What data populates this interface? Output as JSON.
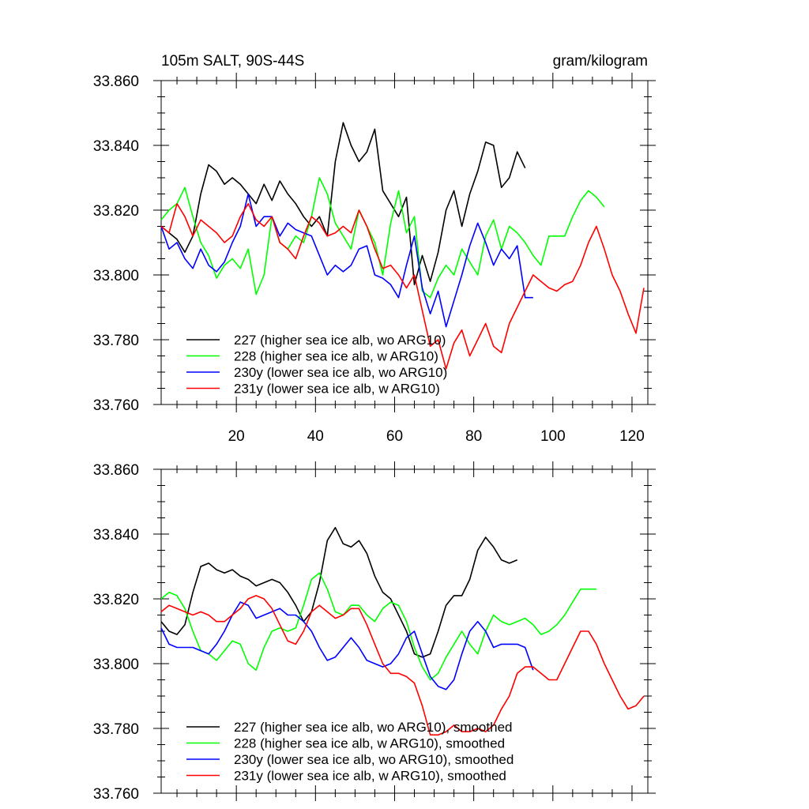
{
  "chart_data": [
    {
      "type": "line",
      "title": "105m SALT, 90S-44S",
      "units": "gram/kilogram",
      "xlim": [
        1,
        124
      ],
      "ylim": [
        33.76,
        33.86
      ],
      "x_ticks": [
        "20",
        "40",
        "60",
        "80",
        "100",
        "120"
      ],
      "y_ticks": [
        "33.760",
        "33.780",
        "33.800",
        "33.820",
        "33.840",
        "33.860"
      ],
      "series": [
        {
          "name": "227 (higher sea ice alb, wo ARG10)",
          "color": "#000000",
          "x": [
            1,
            3,
            5,
            7,
            9,
            11,
            13,
            15,
            17,
            19,
            21,
            23,
            25,
            27,
            29,
            31,
            33,
            35,
            37,
            39,
            41,
            43,
            45,
            47,
            49,
            51,
            53,
            55,
            57,
            59,
            61,
            63,
            65,
            67,
            69,
            71,
            73,
            75,
            77,
            79,
            81,
            83,
            85,
            87,
            89,
            91,
            93
          ],
          "values": [
            33.815,
            33.813,
            33.811,
            33.807,
            33.812,
            33.825,
            33.834,
            33.832,
            33.828,
            33.83,
            33.828,
            33.825,
            33.822,
            33.828,
            33.823,
            33.829,
            33.825,
            33.822,
            33.818,
            33.815,
            33.818,
            33.812,
            33.835,
            33.847,
            33.84,
            33.835,
            33.838,
            33.845,
            33.826,
            33.822,
            33.818,
            33.824,
            33.797,
            33.806,
            33.798,
            33.807,
            33.82,
            33.826,
            33.815,
            33.825,
            33.832,
            33.841,
            33.84,
            33.827,
            33.83,
            33.838,
            33.833
          ]
        },
        {
          "name": "228 (higher sea ice alb, w ARG10)",
          "color": "#00ff00",
          "x": [
            1,
            3,
            5,
            7,
            9,
            11,
            13,
            15,
            17,
            19,
            21,
            23,
            25,
            27,
            29,
            31,
            33,
            35,
            37,
            39,
            41,
            43,
            45,
            47,
            49,
            51,
            53,
            55,
            57,
            59,
            61,
            63,
            65,
            67,
            69,
            71,
            73,
            75,
            77,
            79,
            81,
            83,
            85,
            87,
            89,
            91,
            93,
            95,
            97,
            99,
            101,
            103,
            105,
            107,
            109,
            111,
            113
          ],
          "values": [
            33.817,
            33.82,
            33.822,
            33.827,
            33.818,
            33.81,
            33.806,
            33.799,
            33.803,
            33.805,
            33.802,
            33.808,
            33.794,
            33.8,
            33.818,
            33.81,
            33.808,
            33.812,
            33.81,
            33.818,
            33.83,
            33.825,
            33.816,
            33.812,
            33.808,
            33.82,
            33.815,
            33.81,
            33.8,
            33.816,
            33.826,
            33.813,
            33.818,
            33.795,
            33.793,
            33.799,
            33.803,
            33.8,
            33.808,
            33.804,
            33.8,
            33.812,
            33.817,
            33.808,
            33.815,
            33.813,
            33.81,
            33.806,
            33.803,
            33.812,
            33.812,
            33.812,
            33.818,
            33.823,
            33.826,
            33.824,
            33.821
          ]
        },
        {
          "name": "230y (lower sea ice alb, wo ARG10)",
          "color": "#0000ff",
          "x": [
            1,
            3,
            5,
            7,
            9,
            11,
            13,
            15,
            17,
            19,
            21,
            23,
            25,
            27,
            29,
            31,
            33,
            35,
            37,
            39,
            41,
            43,
            45,
            47,
            49,
            51,
            53,
            55,
            57,
            59,
            61,
            63,
            65,
            67,
            69,
            71,
            73,
            75,
            77,
            79,
            81,
            83,
            85,
            87,
            89,
            91,
            93,
            95
          ],
          "values": [
            33.815,
            33.808,
            33.81,
            33.805,
            33.802,
            33.808,
            33.803,
            33.801,
            33.804,
            33.81,
            33.815,
            33.825,
            33.815,
            33.818,
            33.818,
            33.812,
            33.816,
            33.814,
            33.813,
            33.812,
            33.806,
            33.8,
            33.803,
            33.801,
            33.803,
            33.808,
            33.809,
            33.8,
            33.799,
            33.797,
            33.793,
            33.803,
            33.812,
            33.796,
            33.788,
            33.795,
            33.784,
            33.792,
            33.8,
            33.809,
            33.816,
            33.81,
            33.803,
            33.808,
            33.805,
            33.809,
            33.793,
            33.793
          ]
        },
        {
          "name": "231y (lower sea ice alb, w ARG10)",
          "color": "#ff0000",
          "x": [
            1,
            3,
            5,
            7,
            9,
            11,
            13,
            15,
            17,
            19,
            21,
            23,
            25,
            27,
            29,
            31,
            33,
            35,
            37,
            39,
            41,
            43,
            45,
            47,
            49,
            51,
            53,
            55,
            57,
            59,
            61,
            63,
            65,
            67,
            69,
            71,
            73,
            75,
            77,
            79,
            81,
            83,
            85,
            87,
            89,
            91,
            93,
            95,
            97,
            99,
            101,
            103,
            105,
            107,
            109,
            111,
            113,
            115,
            117,
            119,
            121,
            123
          ],
          "values": [
            33.815,
            33.813,
            33.822,
            33.818,
            33.812,
            33.817,
            33.815,
            33.813,
            33.81,
            33.812,
            33.818,
            33.822,
            33.817,
            33.815,
            33.818,
            33.81,
            33.808,
            33.805,
            33.812,
            33.818,
            33.816,
            33.812,
            33.813,
            33.815,
            33.813,
            33.82,
            33.815,
            33.808,
            33.802,
            33.803,
            33.8,
            33.796,
            33.8,
            33.789,
            33.778,
            33.78,
            33.771,
            33.779,
            33.783,
            33.775,
            33.78,
            33.785,
            33.778,
            33.776,
            33.785,
            33.79,
            33.795,
            33.8,
            33.798,
            33.796,
            33.795,
            33.797,
            33.798,
            33.803,
            33.81,
            33.815,
            33.808,
            33.8,
            33.795,
            33.788,
            33.782,
            33.796
          ]
        }
      ]
    },
    {
      "type": "line",
      "xlim": [
        1,
        124
      ],
      "ylim": [
        33.76,
        33.86
      ],
      "y_ticks": [
        "33.760",
        "33.780",
        "33.800",
        "33.820",
        "33.840",
        "33.860"
      ],
      "series": [
        {
          "name": "227 (higher sea ice alb, wo ARG10), smoothed",
          "color": "#000000",
          "x": [
            1,
            3,
            5,
            7,
            9,
            11,
            13,
            15,
            17,
            19,
            21,
            23,
            25,
            27,
            29,
            31,
            33,
            35,
            37,
            39,
            41,
            43,
            45,
            47,
            49,
            51,
            53,
            55,
            57,
            59,
            61,
            63,
            65,
            67,
            69,
            71,
            73,
            75,
            77,
            79,
            81,
            83,
            85,
            87,
            89,
            91
          ],
          "values": [
            33.813,
            33.81,
            33.809,
            33.812,
            33.822,
            33.83,
            33.831,
            33.829,
            33.828,
            33.829,
            33.827,
            33.826,
            33.824,
            33.825,
            33.826,
            33.825,
            33.822,
            33.818,
            33.813,
            33.816,
            33.825,
            33.838,
            33.842,
            33.837,
            33.836,
            33.838,
            33.834,
            33.827,
            33.822,
            33.82,
            33.815,
            33.81,
            33.803,
            33.802,
            33.803,
            33.81,
            33.818,
            33.821,
            33.821,
            33.826,
            33.835,
            33.839,
            33.836,
            33.832,
            33.831,
            33.832
          ]
        },
        {
          "name": "228 (higher sea ice alb, w ARG10), smoothed",
          "color": "#00ff00",
          "x": [
            1,
            3,
            5,
            7,
            9,
            11,
            13,
            15,
            17,
            19,
            21,
            23,
            25,
            27,
            29,
            31,
            33,
            35,
            37,
            39,
            41,
            43,
            45,
            47,
            49,
            51,
            53,
            55,
            57,
            59,
            61,
            63,
            65,
            67,
            69,
            71,
            73,
            75,
            77,
            79,
            81,
            83,
            85,
            87,
            89,
            91,
            93,
            95,
            97,
            99,
            101,
            103,
            105,
            107,
            109,
            111
          ],
          "values": [
            33.82,
            33.822,
            33.821,
            33.817,
            33.81,
            33.804,
            33.803,
            33.801,
            33.804,
            33.807,
            33.806,
            33.8,
            33.798,
            33.805,
            33.81,
            33.811,
            33.81,
            33.811,
            33.818,
            33.826,
            33.828,
            33.823,
            33.816,
            33.815,
            33.818,
            33.818,
            33.815,
            33.813,
            33.817,
            33.819,
            33.818,
            33.813,
            33.805,
            33.799,
            33.795,
            33.797,
            33.802,
            33.806,
            33.81,
            33.806,
            33.803,
            33.81,
            33.815,
            33.813,
            33.812,
            33.813,
            33.814,
            33.812,
            33.809,
            33.81,
            33.812,
            33.815,
            33.819,
            33.823,
            33.823,
            33.823
          ]
        },
        {
          "name": "230y (lower sea ice alb, wo ARG10), smoothed",
          "color": "#0000ff",
          "x": [
            1,
            3,
            5,
            7,
            9,
            11,
            13,
            15,
            17,
            19,
            21,
            23,
            25,
            27,
            29,
            31,
            33,
            35,
            37,
            39,
            41,
            43,
            45,
            47,
            49,
            51,
            53,
            55,
            57,
            59,
            61,
            63,
            65,
            67,
            69,
            71,
            73,
            75,
            77,
            79,
            81,
            83,
            85,
            87,
            89,
            91,
            93,
            95
          ],
          "values": [
            33.811,
            33.806,
            33.805,
            33.805,
            33.805,
            33.804,
            33.803,
            33.806,
            33.81,
            33.815,
            33.819,
            33.818,
            33.814,
            33.815,
            33.816,
            33.817,
            33.815,
            33.815,
            33.813,
            33.81,
            33.805,
            33.801,
            33.802,
            33.805,
            33.808,
            33.805,
            33.801,
            33.8,
            33.799,
            33.8,
            33.803,
            33.808,
            33.81,
            33.803,
            33.796,
            33.793,
            33.792,
            33.795,
            33.803,
            33.81,
            33.813,
            33.81,
            33.805,
            33.806,
            33.806,
            33.806,
            33.805,
            33.798
          ]
        },
        {
          "name": "231y (lower sea ice alb, w ARG10), smoothed",
          "color": "#ff0000",
          "x": [
            1,
            3,
            5,
            7,
            9,
            11,
            13,
            15,
            17,
            19,
            21,
            23,
            25,
            27,
            29,
            31,
            33,
            35,
            37,
            39,
            41,
            43,
            45,
            47,
            49,
            51,
            53,
            55,
            57,
            59,
            61,
            63,
            65,
            67,
            69,
            71,
            73,
            75,
            77,
            79,
            81,
            83,
            85,
            87,
            89,
            91,
            93,
            95,
            97,
            99,
            101,
            103,
            105,
            107,
            109,
            111,
            113,
            115,
            117,
            119,
            121,
            123
          ],
          "values": [
            33.816,
            33.818,
            33.817,
            33.816,
            33.815,
            33.816,
            33.815,
            33.813,
            33.813,
            33.815,
            33.817,
            33.82,
            33.821,
            33.82,
            33.817,
            33.812,
            33.807,
            33.806,
            33.81,
            33.816,
            33.818,
            33.816,
            33.814,
            33.815,
            33.817,
            33.817,
            33.812,
            33.806,
            33.8,
            33.797,
            33.797,
            33.796,
            33.794,
            33.787,
            33.778,
            33.778,
            33.779,
            33.781,
            33.779,
            33.779,
            33.78,
            33.779,
            33.781,
            33.786,
            33.79,
            33.797,
            33.799,
            33.799,
            33.797,
            33.795,
            33.795,
            33.8,
            33.805,
            33.81,
            33.81,
            33.806,
            33.8,
            33.795,
            33.79,
            33.786,
            33.787,
            33.79
          ]
        }
      ]
    }
  ]
}
